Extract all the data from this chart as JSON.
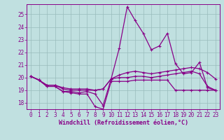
{
  "title": "",
  "xlabel": "Windchill (Refroidissement éolien,°C)",
  "background_color": "#c0e0e0",
  "line_color": "#880088",
  "grid_color": "#99bbbb",
  "xlim": [
    -0.5,
    23.5
  ],
  "ylim": [
    17.5,
    25.8
  ],
  "yticks": [
    18,
    19,
    20,
    21,
    22,
    23,
    24,
    25
  ],
  "xticks": [
    0,
    1,
    2,
    3,
    4,
    5,
    6,
    7,
    8,
    9,
    10,
    11,
    12,
    13,
    14,
    15,
    16,
    17,
    18,
    19,
    20,
    21,
    22,
    23
  ],
  "line1_x": [
    0,
    1,
    2,
    3,
    4,
    5,
    6,
    7,
    8,
    9,
    10,
    11,
    12,
    13,
    14,
    15,
    16,
    17,
    18,
    19,
    20,
    21,
    22,
    23
  ],
  "line1_y": [
    20.1,
    19.8,
    19.3,
    19.3,
    18.9,
    18.8,
    18.7,
    18.7,
    17.7,
    17.5,
    19.7,
    19.7,
    19.7,
    19.8,
    19.8,
    19.8,
    19.8,
    19.8,
    19.0,
    19.0,
    19.0,
    19.0,
    19.0,
    19.0
  ],
  "line2_x": [
    0,
    1,
    2,
    3,
    4,
    5,
    6,
    7,
    8,
    9,
    10,
    11,
    12,
    13,
    14,
    15,
    16,
    17,
    18,
    19,
    20,
    21,
    22,
    23
  ],
  "line2_y": [
    20.1,
    19.8,
    19.3,
    19.3,
    18.9,
    18.9,
    18.8,
    18.9,
    18.7,
    17.8,
    19.9,
    22.3,
    25.6,
    24.5,
    23.5,
    22.2,
    22.5,
    23.5,
    21.1,
    20.3,
    20.4,
    21.2,
    19.2,
    19.0
  ],
  "line3_x": [
    0,
    1,
    2,
    3,
    4,
    5,
    6,
    7,
    8,
    9,
    10,
    11,
    12,
    13,
    14,
    15,
    16,
    17,
    18,
    19,
    20,
    21,
    22,
    23
  ],
  "line3_y": [
    20.1,
    19.8,
    19.4,
    19.4,
    19.1,
    19.0,
    19.0,
    19.0,
    19.0,
    19.1,
    19.9,
    20.2,
    20.4,
    20.5,
    20.4,
    20.3,
    20.4,
    20.5,
    20.6,
    20.7,
    20.8,
    20.7,
    20.4,
    19.9
  ],
  "line4_x": [
    0,
    1,
    2,
    3,
    4,
    5,
    6,
    7,
    8,
    9,
    10,
    11,
    12,
    13,
    14,
    15,
    16,
    17,
    18,
    19,
    20,
    21,
    22,
    23
  ],
  "line4_y": [
    20.1,
    19.8,
    19.4,
    19.4,
    19.2,
    19.1,
    19.1,
    19.1,
    19.0,
    19.1,
    19.9,
    20.0,
    20.0,
    20.1,
    20.1,
    20.0,
    20.1,
    20.2,
    20.3,
    20.4,
    20.5,
    20.3,
    19.3,
    19.0
  ],
  "xlabel_fontsize": 6.0,
  "tick_fontsize": 5.5,
  "linewidth": 0.9,
  "markersize": 3.0
}
